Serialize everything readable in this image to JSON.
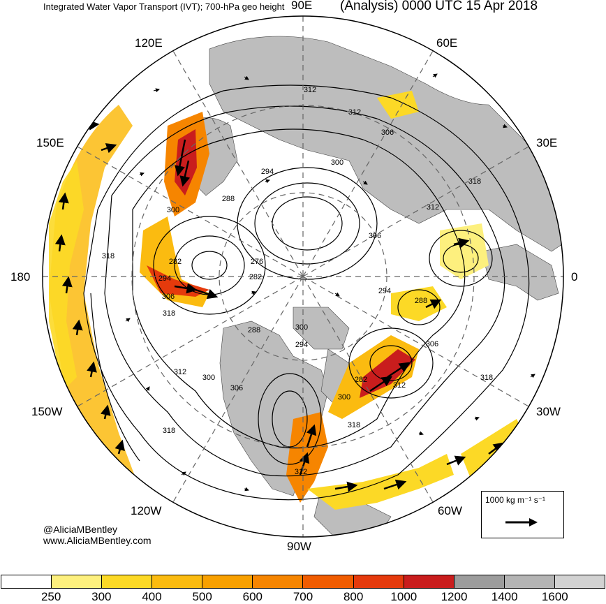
{
  "header": {
    "left_title": "Integrated Water Vapor Transport (IVT); 700-hPa geo height",
    "right_title": "(Analysis) 0000 UTC 15 Apr 2018"
  },
  "longitude_labels": {
    "lon_90e": "90E",
    "lon_60e": "60E",
    "lon_120e": "120E",
    "lon_30e": "30E",
    "lon_150e": "150E",
    "lon_180": "180",
    "lon_0": "0",
    "lon_150w": "150W",
    "lon_30w": "30W",
    "lon_120w": "120W",
    "lon_60w": "60W",
    "lon_90w": "90W"
  },
  "contour_labels": [
    "312",
    "312",
    "306",
    "300",
    "294",
    "288",
    "318",
    "312",
    "306",
    "300",
    "282",
    "276",
    "282",
    "294",
    "306",
    "318",
    "288",
    "294",
    "288",
    "300",
    "294",
    "312",
    "300",
    "306",
    "312",
    "318",
    "282",
    "300",
    "306",
    "318",
    "312",
    "318",
    "318"
  ],
  "reference_vector": {
    "label": "1000 kg m⁻¹ s⁻¹"
  },
  "credits": {
    "handle": "@AliciaMBentley",
    "website": "www.AliciaMBentley.com"
  },
  "colorbar": {
    "ticks": [
      "250",
      "300",
      "400",
      "500",
      "600",
      "700",
      "800",
      "1000",
      "1200",
      "1400",
      "1600"
    ],
    "colors": [
      "#ffffff",
      "#fdf07e",
      "#fcd926",
      "#fbbb10",
      "#f8a000",
      "#f68500",
      "#f05c00",
      "#e53a0c",
      "#c91d1d",
      "#9c9c9c",
      "#b4b4b4",
      "#d2d2d2"
    ]
  }
}
